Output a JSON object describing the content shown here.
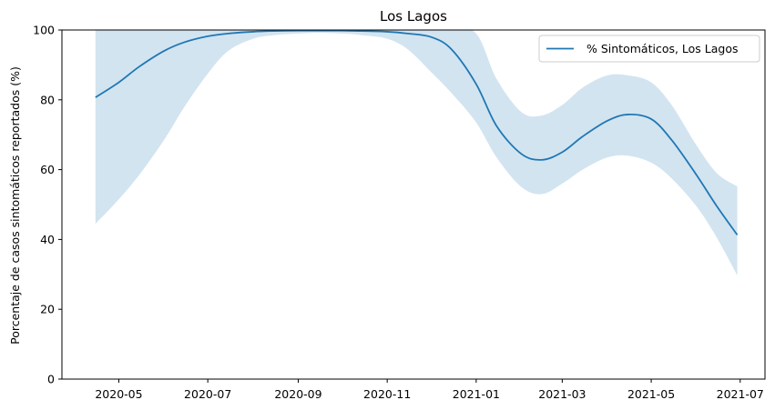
{
  "chart_data": {
    "type": "line",
    "title": "Los Lagos",
    "xlabel": "",
    "ylabel": "Porcentaje de casos sintomáticos reportados (%)",
    "ylim": [
      0,
      100
    ],
    "xlim": [
      "2020-03-23",
      "2021-07-18"
    ],
    "yticks": [
      0,
      20,
      40,
      60,
      80,
      100
    ],
    "xticks": [
      "2020-05",
      "2020-07",
      "2020-09",
      "2020-11",
      "2021-01",
      "2021-03",
      "2021-05",
      "2021-07"
    ],
    "legend_position": "top-right",
    "grid": false,
    "colors": {
      "line": "#1f77b4",
      "band": "#1f77b4"
    },
    "series": [
      {
        "name": "% Sintomáticos, Los Lagos",
        "x": [
          "2020-04-15",
          "2020-05-01",
          "2020-05-15",
          "2020-06-01",
          "2020-06-15",
          "2020-07-01",
          "2020-07-15",
          "2020-08-01",
          "2020-08-15",
          "2020-09-01",
          "2020-09-15",
          "2020-10-01",
          "2020-10-15",
          "2020-11-01",
          "2020-11-15",
          "2020-12-01",
          "2020-12-15",
          "2021-01-01",
          "2021-01-15",
          "2021-02-01",
          "2021-02-15",
          "2021-03-01",
          "2021-03-15",
          "2021-04-01",
          "2021-04-15",
          "2021-05-01",
          "2021-05-15",
          "2021-06-01",
          "2021-06-15",
          "2021-06-29"
        ],
        "values": [
          80.7,
          85.0,
          89.5,
          94.0,
          96.5,
          98.2,
          99.0,
          99.5,
          99.7,
          99.8,
          99.8,
          99.8,
          99.7,
          99.5,
          99.0,
          98.0,
          94.5,
          84.5,
          72.5,
          64.5,
          62.8,
          65.0,
          69.5,
          74.0,
          75.8,
          74.5,
          68.5,
          58.5,
          49.5,
          41.3
        ],
        "lower": [
          44.5,
          51.5,
          58.5,
          68.5,
          78.0,
          87.5,
          94.0,
          97.5,
          98.5,
          99.0,
          99.2,
          99.0,
          98.5,
          97.5,
          94.5,
          88.0,
          82.0,
          73.5,
          63.5,
          55.0,
          53.0,
          56.0,
          60.0,
          63.5,
          64.0,
          62.0,
          57.5,
          49.5,
          40.5,
          29.7
        ],
        "upper": [
          100,
          100,
          100,
          100,
          100,
          100,
          100,
          100,
          100,
          100,
          100,
          100,
          100,
          100,
          100,
          100,
          100,
          99.0,
          86.0,
          76.5,
          75.5,
          78.5,
          83.5,
          87.0,
          87.0,
          85.0,
          78.5,
          67.0,
          59.0,
          55.2
        ]
      }
    ]
  }
}
